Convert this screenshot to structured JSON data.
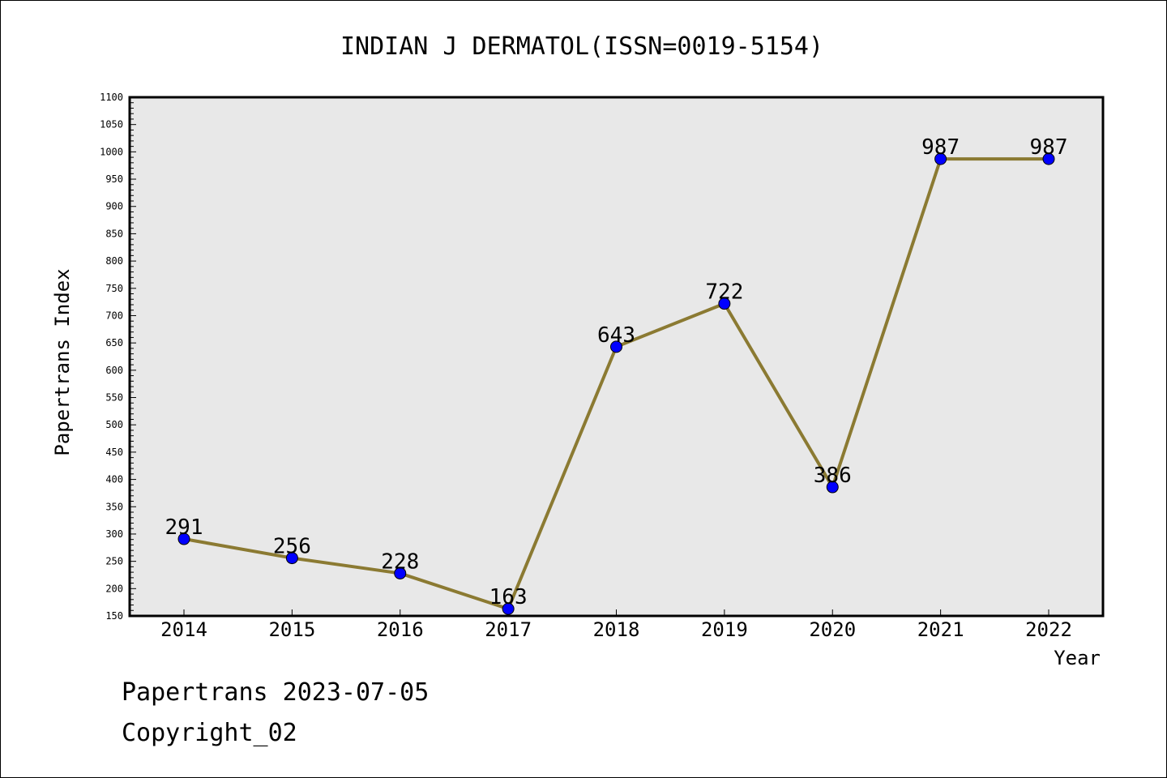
{
  "chart_data": {
    "type": "line",
    "title": "INDIAN J DERMATOL(ISSN=0019-5154)",
    "xlabel": "Year",
    "ylabel": "Papertrans Index",
    "x": [
      "2014",
      "2015",
      "2016",
      "2017",
      "2018",
      "2019",
      "2020",
      "2021",
      "2022"
    ],
    "series": [
      {
        "values": [
          291,
          256,
          228,
          163,
          643,
          722,
          386,
          987,
          987
        ]
      }
    ],
    "data_labels": [
      "291",
      "256",
      "228",
      "163",
      "643",
      "722",
      "386",
      "987",
      "987"
    ],
    "ylim": [
      150,
      1100
    ],
    "yticks": [
      "150",
      "200",
      "250",
      "300",
      "350",
      "400",
      "450",
      "500",
      "550",
      "600",
      "650",
      "700",
      "750",
      "800",
      "850",
      "900",
      "950",
      "1000",
      "1050",
      "1100"
    ],
    "grid": false,
    "plot_background": "#e8e8e8",
    "line_color": "#8b7a32",
    "marker_color": "#0000ff"
  },
  "footer": {
    "line1": "Papertrans 2023-07-05",
    "line2": "Copyright_02"
  }
}
